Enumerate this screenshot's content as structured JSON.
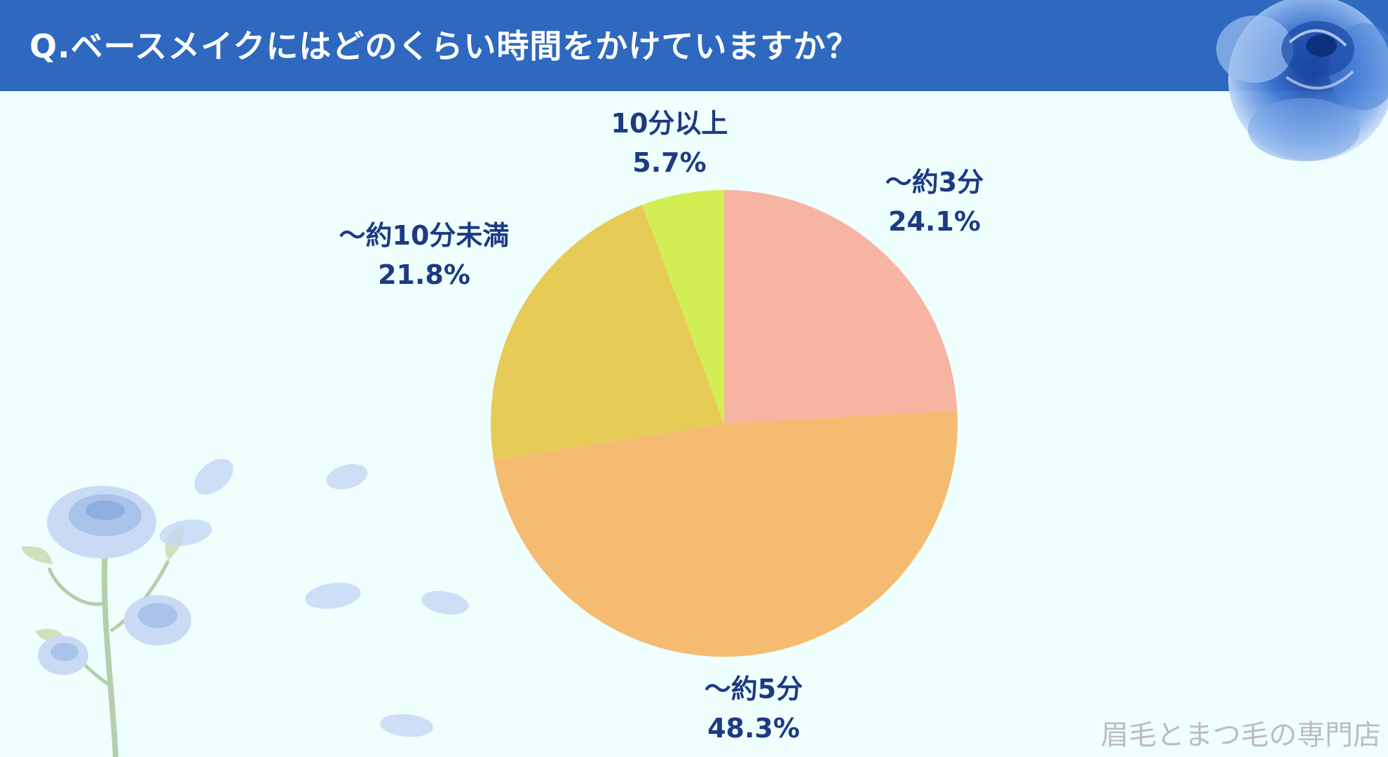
{
  "header": {
    "title": "Q.ベースメイクにはどのくらい時間をかけていますか？"
  },
  "chart_data": {
    "type": "pie",
    "title": "Q.ベースメイクにはどのくらい時間をかけていますか？",
    "slices": [
      {
        "label": "～約3分",
        "percent_label": "24.1%",
        "value": 24.1,
        "color": "#f8b4a3"
      },
      {
        "label": "～約5分",
        "percent_label": "48.3%",
        "value": 48.3,
        "color": "#f5bb70"
      },
      {
        "label": "～約10分未満",
        "percent_label": "21.8%",
        "value": 21.8,
        "color": "#e6cc56"
      },
      {
        "label": "10分以上",
        "percent_label": "5.7%",
        "value": 5.7,
        "color": "#d3ee52"
      }
    ],
    "start_angle": "12 o'clock",
    "direction": "clockwise",
    "legend": "none (labels outside slices)"
  },
  "labels_color": "#1d3a84",
  "header_color": "#2e68bf",
  "background_color": "#effffe",
  "watermark": "眉毛とまつ毛の専門店"
}
